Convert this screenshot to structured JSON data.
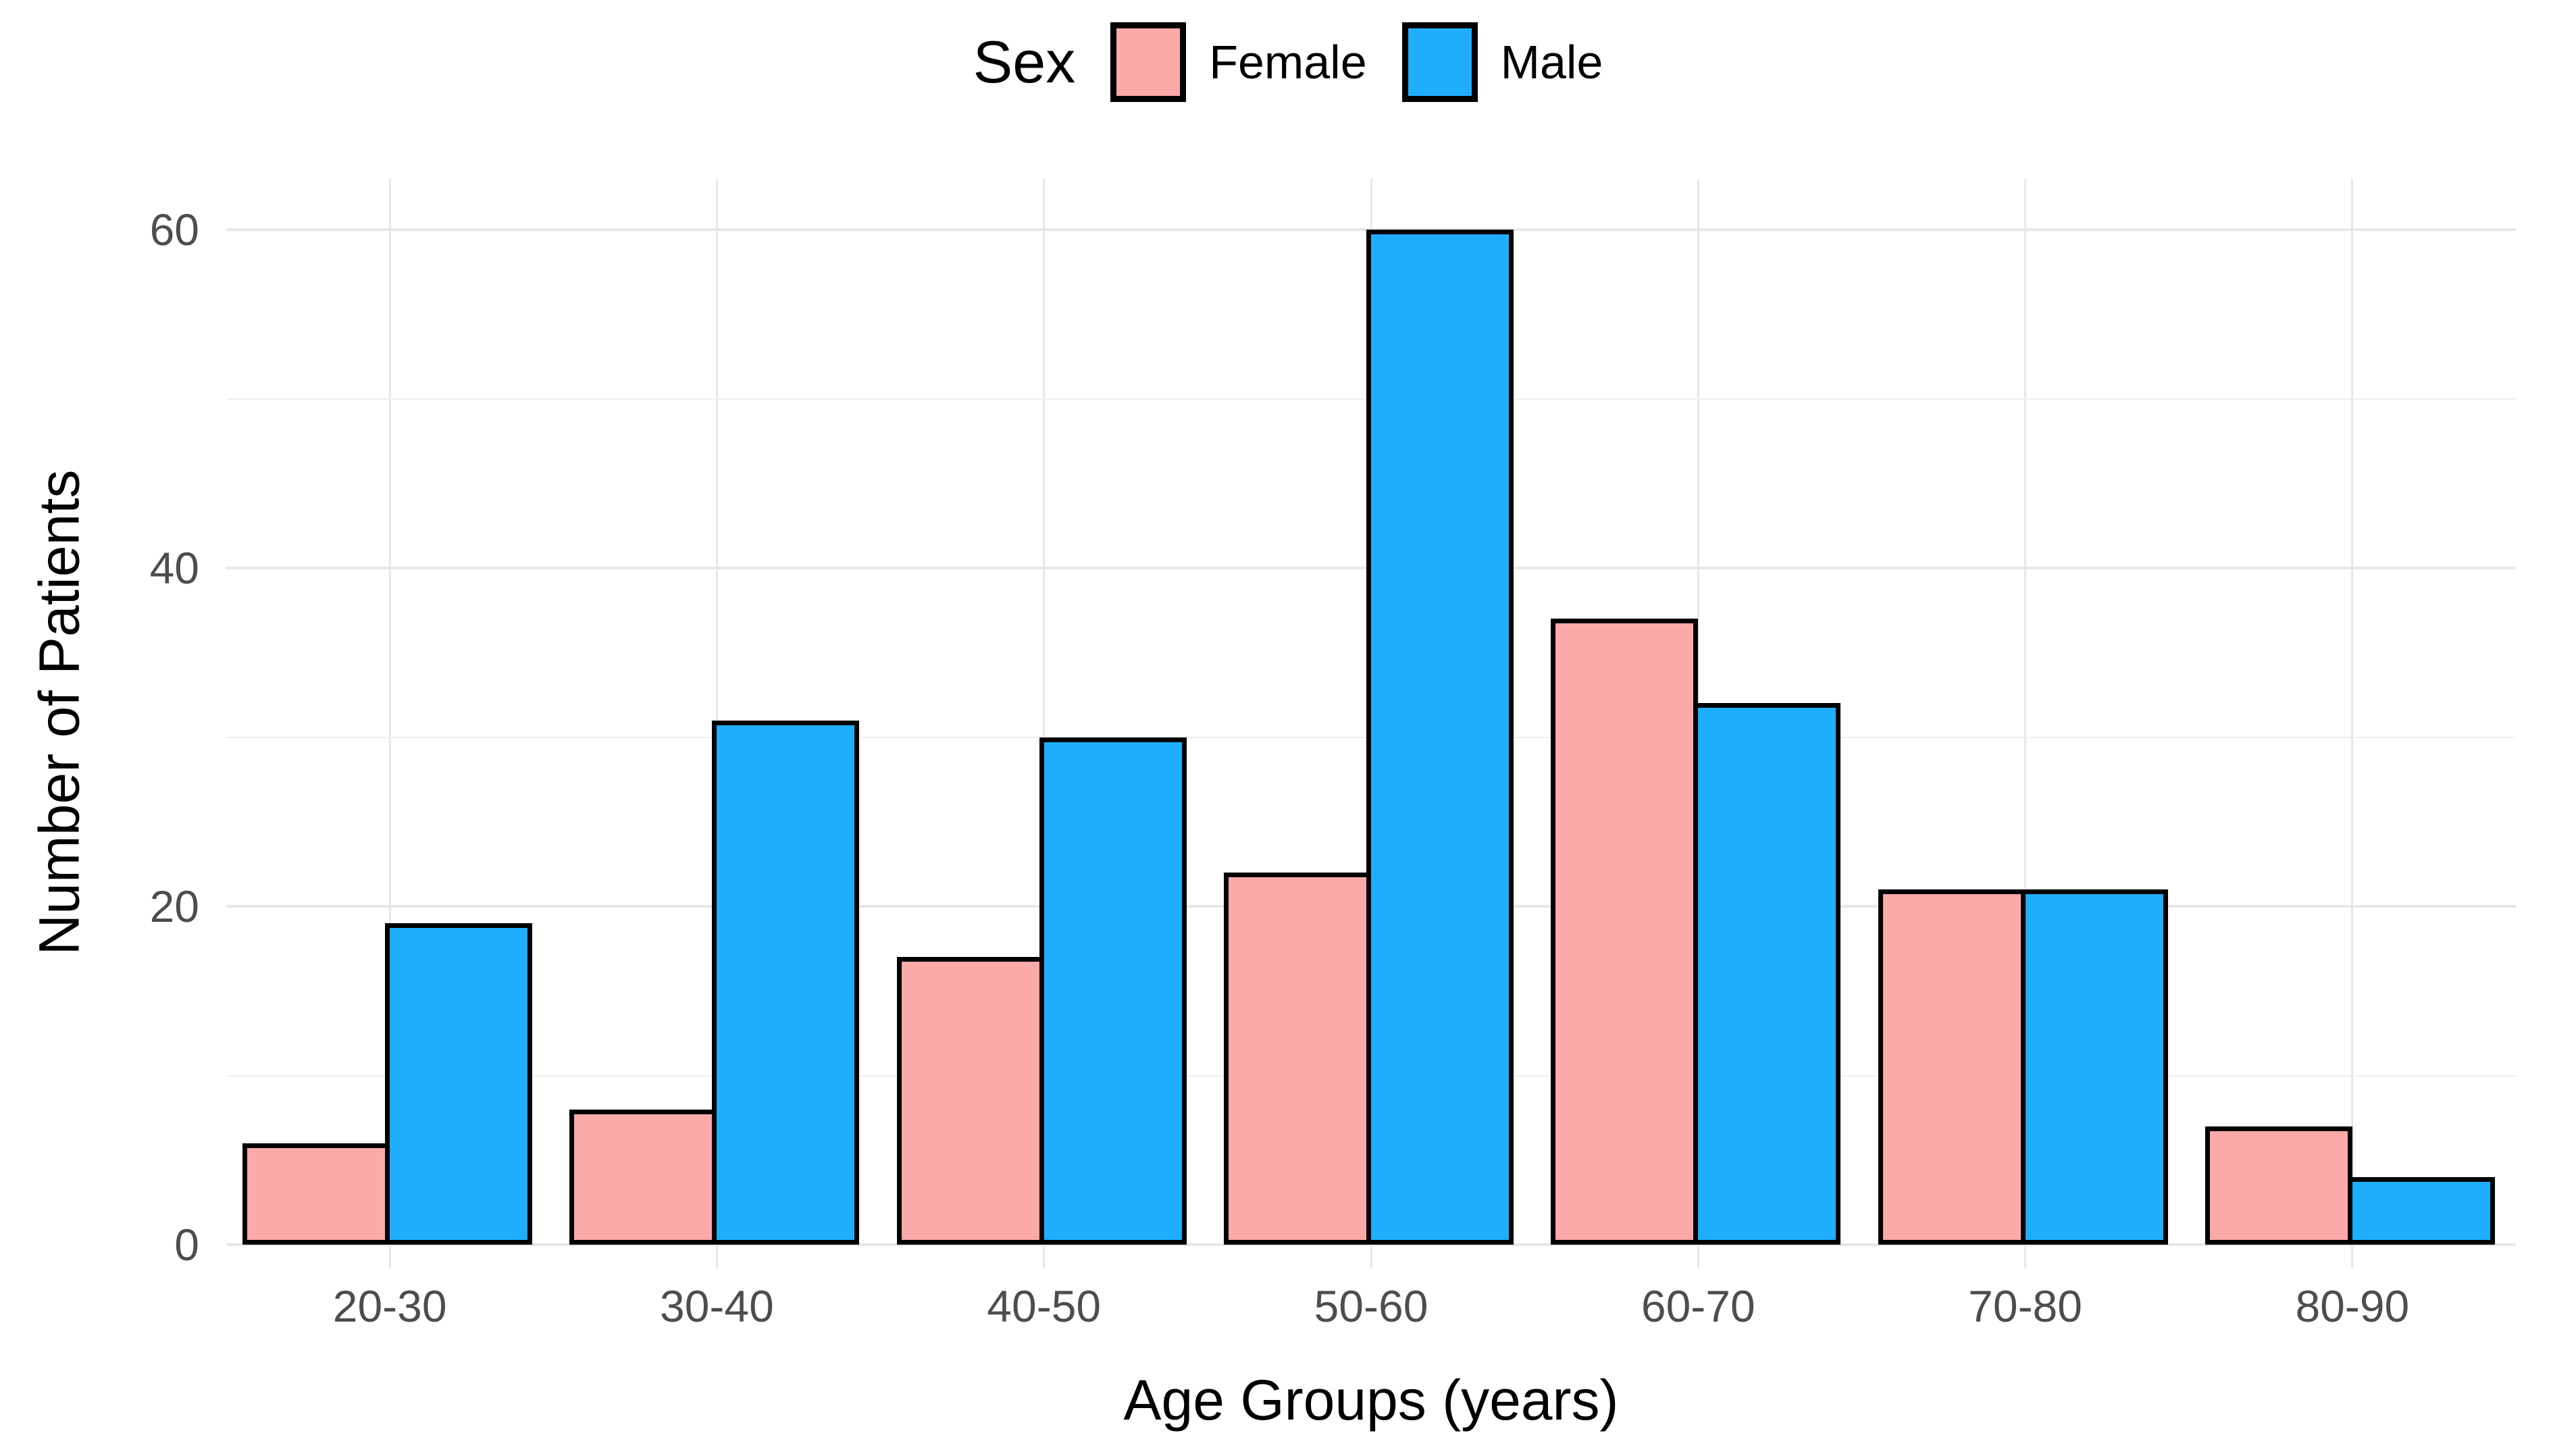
{
  "chart_data": {
    "type": "bar",
    "title": "",
    "categories": [
      "20-30",
      "30-40",
      "40-50",
      "50-60",
      "60-70",
      "70-80",
      "80-90"
    ],
    "series": [
      {
        "name": "Female",
        "color": "#FCA9A9",
        "values": [
          6,
          8,
          17,
          22,
          37,
          21,
          7
        ]
      },
      {
        "name": "Male",
        "color": "#1EAEFC",
        "values": [
          19,
          31,
          30,
          60,
          32,
          21,
          4
        ]
      }
    ],
    "xlabel": "Age Groups (years)",
    "ylabel": "Number of Patients",
    "ylim": [
      0,
      63
    ],
    "yticks_major": [
      0,
      20,
      40,
      60
    ],
    "yticks_minor": [
      10,
      30,
      50
    ],
    "legend_title": "Sex",
    "legend_position": "top",
    "grid": true,
    "bar_border_color": "#000000",
    "gridline_color": "#E7E7E7",
    "tick_label_color": "#4D4D4D"
  }
}
